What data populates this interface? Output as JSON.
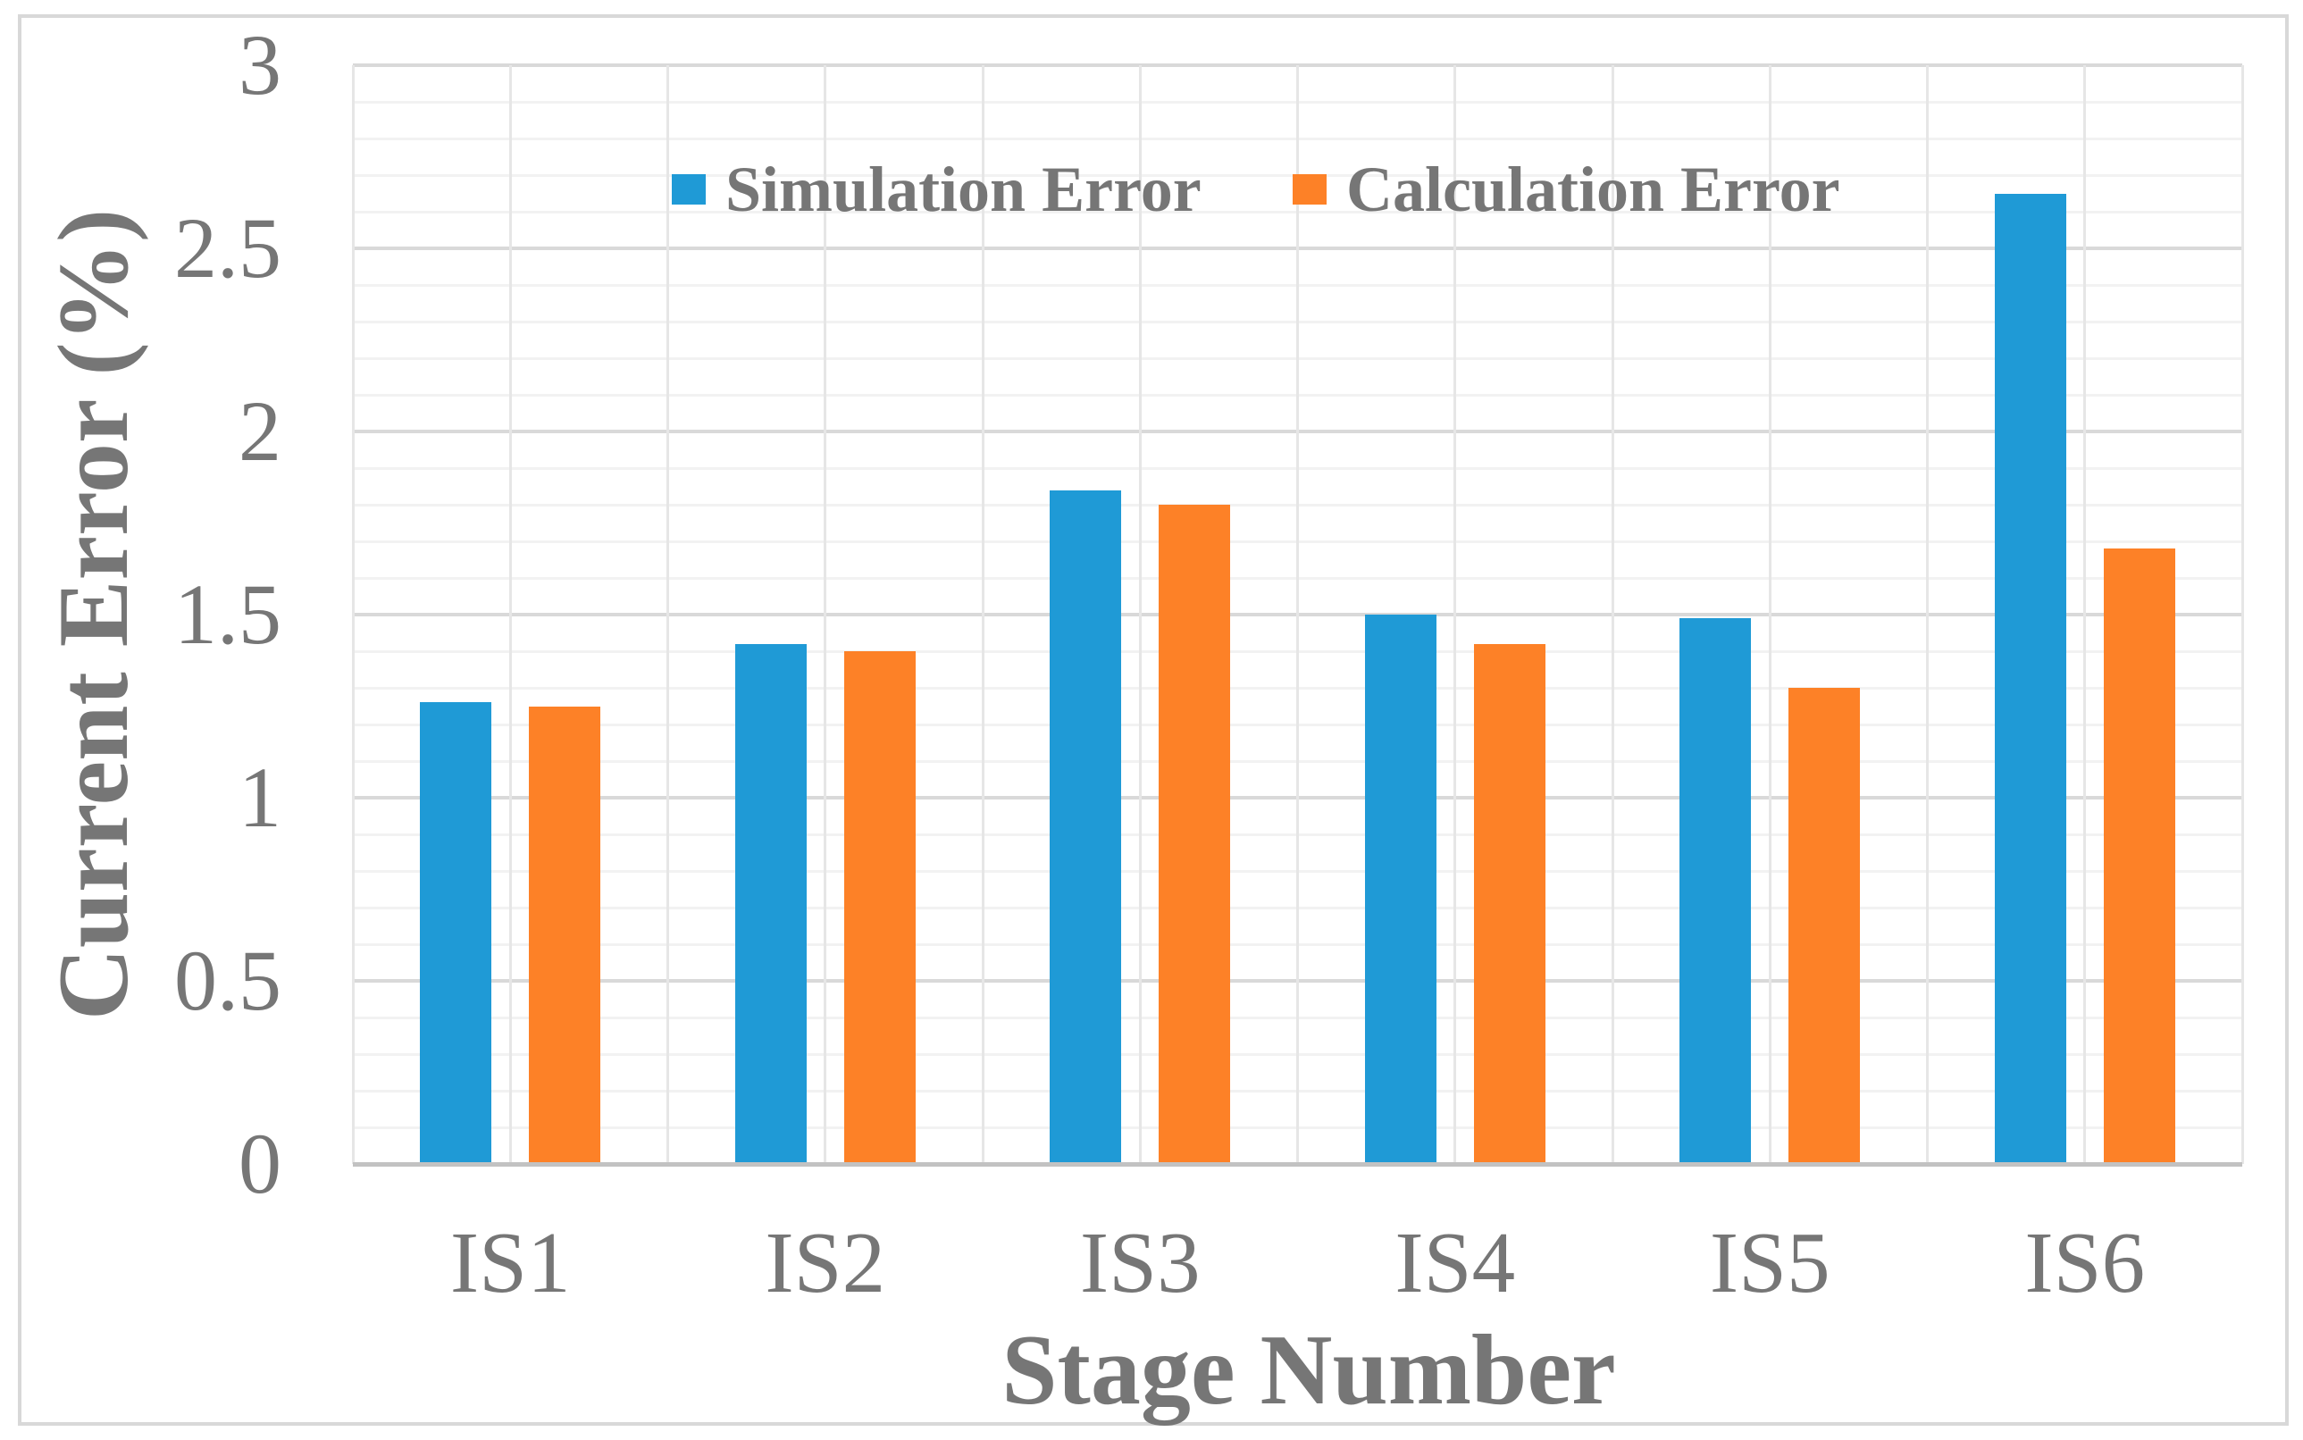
{
  "chart_data": {
    "type": "bar",
    "title": "",
    "xlabel": "Stage Number",
    "ylabel": "Current Error (%)",
    "categories": [
      "IS1",
      "IS2",
      "IS3",
      "IS4",
      "IS5",
      "IS6"
    ],
    "series": [
      {
        "name": "Simulation Error",
        "color": "#1f9ad6",
        "values": [
          1.26,
          1.42,
          1.84,
          1.5,
          1.49,
          2.65
        ]
      },
      {
        "name": "Calculation Error",
        "color": "#fd8127",
        "values": [
          1.25,
          1.4,
          1.8,
          1.42,
          1.3,
          1.68
        ]
      }
    ],
    "ylim": [
      0,
      3
    ],
    "y_major_step": 0.5,
    "y_minor_step": 0.1,
    "y_tick_labels": [
      "0",
      "0.5",
      "1",
      "1.5",
      "2",
      "2.5",
      "3"
    ],
    "grid": "major-and-minor-horizontal, minor-vertical",
    "legend_position": "top-center-inside",
    "colors": {
      "text_gray": "#767676",
      "major_gridline": "#d9d9d9",
      "minor_gridline": "#f2f2f2",
      "vertical_gridline": "#e6e6e6",
      "axis_line": "#c2c2c2",
      "chart_border": "#d8d8d8",
      "background": "#ffffff"
    }
  }
}
